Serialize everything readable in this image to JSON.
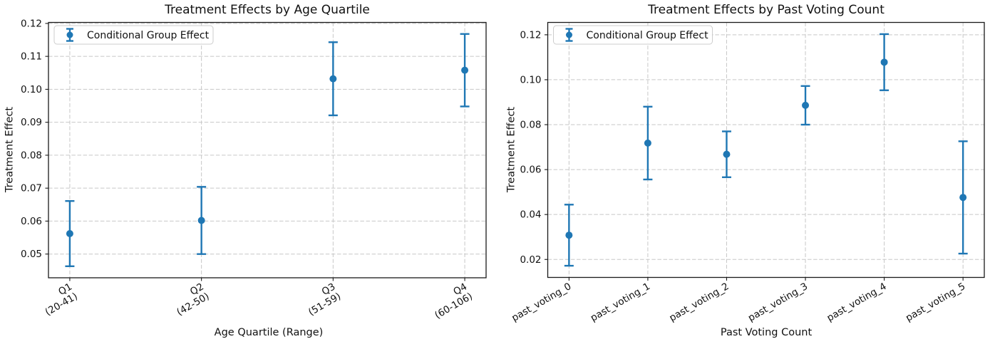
{
  "figure": {
    "background": "#ffffff",
    "colors": {
      "accent": "#1f77b4",
      "grid": "#c7c7c7",
      "spine": "#1a1a1a",
      "tick": "#1a1a1a",
      "text": "#111111",
      "legend_border": "#cccccc",
      "legend_bg": "#ffffff"
    }
  },
  "chart_data": [
    {
      "id": "chart-age-quartile",
      "type": "scatter",
      "error_bars": true,
      "marker": "o",
      "grid": true,
      "legend_position": "upper left",
      "title": "Treatment Effects by Age Quartile",
      "xlabel": "Age Quartile (Range)",
      "ylabel": "Treatment Effect",
      "legend_label": "Conditional Group Effect",
      "categories": [
        [
          "Q1",
          "(20-41)"
        ],
        [
          "Q2",
          "(42-50)"
        ],
        [
          "Q3",
          "(51-59)"
        ],
        [
          "Q4",
          "(60-106)"
        ]
      ],
      "values": [
        0.0562,
        0.0602,
        0.1032,
        0.1058
      ],
      "errors": [
        0.0099,
        0.0102,
        0.0111,
        0.011
      ],
      "ylim": [
        0.0428,
        0.1203
      ],
      "yticks": [
        0.05,
        0.06,
        0.07,
        0.08,
        0.09,
        0.1,
        0.11,
        0.12
      ],
      "ytick_labels": [
        "0.05",
        "0.06",
        "0.07",
        "0.08",
        "0.09",
        "0.10",
        "0.11",
        "0.12"
      ],
      "xtick_rotation": 30
    },
    {
      "id": "chart-past-voting",
      "type": "scatter",
      "error_bars": true,
      "marker": "o",
      "grid": true,
      "legend_position": "upper left",
      "title": "Treatment Effects by Past Voting Count",
      "xlabel": "Past Voting Count",
      "ylabel": "Treatment Effect",
      "legend_label": "Conditional Group Effect",
      "categories": [
        "past_voting_0",
        "past_voting_1",
        "past_voting_2",
        "past_voting_3",
        "past_voting_4",
        "past_voting_5"
      ],
      "values": [
        0.0308,
        0.0718,
        0.0668,
        0.0886,
        0.1078,
        0.0476
      ],
      "errors": [
        0.0136,
        0.0162,
        0.0102,
        0.0086,
        0.0125,
        0.025
      ],
      "ylim": [
        0.012,
        0.1255
      ],
      "yticks": [
        0.02,
        0.04,
        0.06,
        0.08,
        0.1,
        0.12
      ],
      "ytick_labels": [
        "0.02",
        "0.04",
        "0.06",
        "0.08",
        "0.10",
        "0.12"
      ],
      "xtick_rotation": 30
    }
  ]
}
